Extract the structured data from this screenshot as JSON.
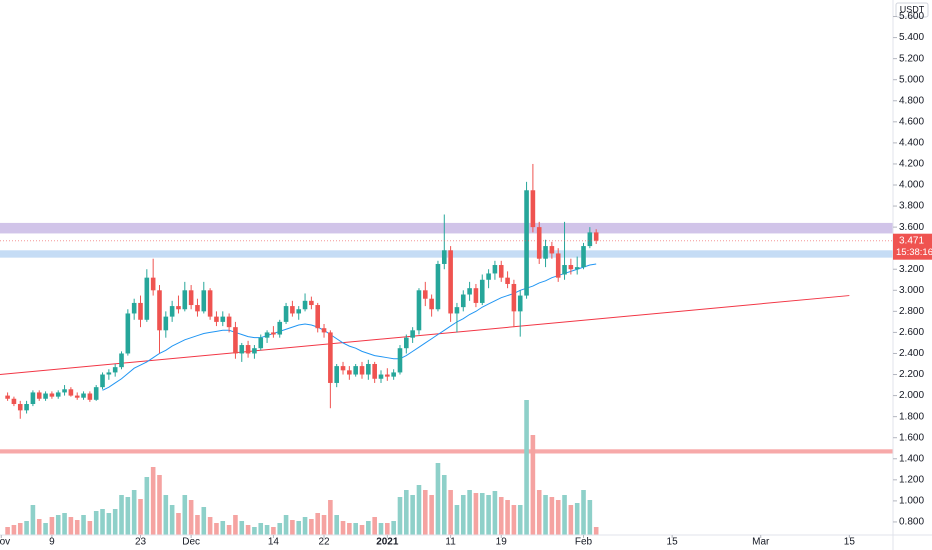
{
  "chart_data": {
    "type": "candlestick",
    "currency": "USDT",
    "countdown": "15:38:16",
    "up_color": "#26a69a",
    "down_color": "#ef5350",
    "volume_up_color": "#8ed0c9",
    "volume_down_color": "#f5a3a1",
    "open": [
      2.0,
      1.97,
      1.92,
      1.86,
      1.92,
      2.03,
      1.97,
      2.02,
      1.99,
      2.03,
      2.06,
      2.0,
      1.98,
      2.02,
      1.96,
      2.08,
      2.2,
      2.22,
      2.27,
      2.4,
      2.78,
      2.88,
      2.72,
      3.12,
      3.0,
      2.62,
      2.75,
      2.85,
      2.82,
      3.0,
      2.86,
      2.8,
      3.0,
      2.75,
      2.7,
      2.75,
      2.65,
      2.4,
      2.48,
      2.4,
      2.45,
      2.55,
      2.6,
      2.58,
      2.7,
      2.85,
      2.78,
      2.82,
      2.9,
      2.86,
      2.64,
      2.6,
      2.12,
      2.28,
      2.24,
      2.2,
      2.28,
      2.2,
      2.3,
      2.16,
      2.2,
      2.18,
      2.22,
      2.45,
      2.55,
      2.62,
      3.0,
      2.92,
      2.82,
      3.25,
      3.38,
      2.78,
      2.84,
      2.96,
      3.02,
      2.88,
      3.1,
      3.16,
      3.24,
      3.12,
      3.06,
      2.8,
      2.95,
      3.95,
      3.6,
      3.3,
      3.42,
      3.35,
      3.15,
      3.24,
      3.2,
      3.22,
      3.42,
      3.55
    ],
    "high": [
      2.03,
      1.99,
      1.95,
      1.95,
      2.05,
      2.05,
      2.04,
      2.04,
      2.05,
      2.1,
      2.08,
      2.03,
      2.04,
      2.04,
      2.1,
      2.22,
      2.25,
      2.3,
      2.42,
      2.82,
      2.92,
      2.95,
      3.2,
      3.3,
      3.05,
      2.8,
      2.9,
      2.95,
      3.08,
      3.05,
      2.92,
      3.08,
      3.02,
      2.8,
      2.8,
      2.78,
      2.7,
      2.5,
      2.52,
      2.48,
      2.58,
      2.62,
      2.66,
      2.72,
      2.88,
      2.9,
      2.85,
      2.97,
      2.94,
      2.88,
      2.68,
      2.62,
      2.3,
      2.32,
      2.28,
      2.3,
      2.32,
      2.34,
      2.32,
      2.24,
      2.26,
      2.25,
      2.48,
      2.58,
      2.65,
      3.02,
      3.08,
      2.96,
      3.28,
      3.72,
      3.42,
      2.88,
      3.0,
      3.08,
      3.06,
      3.15,
      3.2,
      3.28,
      3.28,
      3.18,
      3.1,
      3.0,
      4.03,
      4.2,
      3.65,
      3.48,
      3.46,
      3.4,
      3.65,
      3.3,
      3.32,
      3.45,
      3.6,
      3.58
    ],
    "low": [
      1.95,
      1.9,
      1.78,
      1.83,
      1.9,
      1.95,
      1.95,
      1.97,
      1.97,
      2.0,
      1.99,
      1.96,
      1.96,
      1.94,
      1.95,
      2.06,
      2.15,
      2.18,
      2.25,
      2.38,
      2.72,
      2.65,
      2.7,
      2.95,
      2.4,
      2.55,
      2.7,
      2.78,
      2.8,
      2.82,
      2.75,
      2.78,
      2.72,
      2.66,
      2.66,
      2.6,
      2.35,
      2.32,
      2.36,
      2.35,
      2.43,
      2.5,
      2.55,
      2.55,
      2.68,
      2.75,
      2.72,
      2.8,
      2.82,
      2.6,
      2.55,
      1.88,
      2.08,
      2.2,
      2.15,
      2.18,
      2.16,
      2.15,
      2.12,
      2.12,
      2.14,
      2.15,
      2.2,
      2.4,
      2.5,
      2.58,
      2.85,
      2.75,
      2.8,
      3.2,
      2.7,
      2.6,
      2.8,
      2.9,
      2.84,
      2.86,
      3.02,
      3.1,
      3.08,
      3.02,
      2.65,
      2.56,
      2.92,
      3.55,
      3.25,
      3.22,
      3.3,
      3.08,
      3.1,
      3.15,
      3.15,
      3.2,
      3.4,
      3.44
    ],
    "close": [
      1.97,
      1.92,
      1.86,
      1.92,
      2.03,
      1.97,
      2.02,
      1.99,
      2.03,
      2.06,
      2.0,
      1.98,
      2.02,
      1.96,
      2.08,
      2.2,
      2.22,
      2.27,
      2.4,
      2.78,
      2.88,
      2.72,
      3.12,
      3.0,
      2.62,
      2.75,
      2.85,
      2.82,
      3.0,
      2.86,
      2.8,
      3.0,
      2.75,
      2.7,
      2.75,
      2.65,
      2.4,
      2.48,
      2.4,
      2.45,
      2.55,
      2.6,
      2.58,
      2.7,
      2.85,
      2.78,
      2.82,
      2.9,
      2.86,
      2.64,
      2.6,
      2.12,
      2.28,
      2.24,
      2.2,
      2.28,
      2.2,
      2.3,
      2.16,
      2.2,
      2.18,
      2.22,
      2.45,
      2.55,
      2.62,
      3.0,
      2.92,
      2.82,
      3.25,
      3.38,
      2.78,
      2.84,
      2.96,
      3.02,
      2.88,
      3.1,
      3.16,
      3.24,
      3.12,
      3.06,
      2.8,
      2.95,
      3.95,
      3.6,
      3.3,
      3.42,
      3.35,
      3.12,
      3.24,
      3.2,
      3.22,
      3.42,
      3.55,
      3.471
    ],
    "volume": [
      8,
      10,
      12,
      14,
      30,
      16,
      12,
      18,
      20,
      22,
      18,
      15,
      20,
      14,
      24,
      26,
      22,
      26,
      40,
      38,
      45,
      36,
      58,
      68,
      60,
      40,
      30,
      22,
      40,
      35,
      20,
      28,
      18,
      12,
      14,
      10,
      20,
      14,
      10,
      8,
      12,
      10,
      8,
      12,
      20,
      15,
      14,
      18,
      16,
      22,
      20,
      35,
      20,
      14,
      12,
      12,
      10,
      14,
      18,
      12,
      12,
      14,
      38,
      45,
      40,
      50,
      45,
      40,
      72,
      60,
      45,
      30,
      40,
      45,
      42,
      42,
      40,
      44,
      38,
      35,
      30,
      30,
      135,
      100,
      45,
      40,
      38,
      35,
      40,
      30,
      32,
      45,
      35,
      8
    ],
    "ma": {
      "color": "#2196f3",
      "values": [
        null,
        null,
        null,
        null,
        null,
        null,
        null,
        null,
        null,
        null,
        null,
        null,
        null,
        null,
        null,
        2.05,
        2.08,
        2.12,
        2.16,
        2.21,
        2.26,
        2.29,
        2.32,
        2.36,
        2.4,
        2.43,
        2.47,
        2.5,
        2.53,
        2.55,
        2.57,
        2.59,
        2.6,
        2.61,
        2.62,
        2.62,
        2.6,
        2.58,
        2.56,
        2.55,
        2.55,
        2.57,
        2.59,
        2.61,
        2.63,
        2.65,
        2.67,
        2.68,
        2.67,
        2.65,
        2.62,
        2.58,
        2.54,
        2.5,
        2.47,
        2.45,
        2.42,
        2.4,
        2.38,
        2.37,
        2.36,
        2.35,
        2.35,
        2.38,
        2.42,
        2.46,
        2.5,
        2.54,
        2.58,
        2.62,
        2.66,
        2.7,
        2.73,
        2.77,
        2.8,
        2.84,
        2.87,
        2.9,
        2.93,
        2.95,
        2.97,
        3.0,
        3.02,
        3.04,
        3.07,
        3.09,
        3.12,
        3.14,
        3.16,
        3.18,
        3.2,
        3.22,
        3.24,
        3.25
      ]
    },
    "trendline": {
      "color": "#f23645",
      "x": [
        -1.2,
        133
      ],
      "values": [
        2.2,
        2.95
      ]
    },
    "zones": [
      {
        "from": 3.54,
        "to": 3.64,
        "color": "#d1c4e9"
      },
      {
        "from": 3.31,
        "to": 3.38,
        "color": "#c5dcf5"
      },
      {
        "from": 1.45,
        "to": 1.49,
        "color": "#f7a9a9"
      }
    ],
    "xlim": [
      -1.2,
      139.9
    ],
    "ylim": [
      0.676,
      5.757
    ],
    "y2lim": [
      0,
      535
    ],
    "xticks": [
      {
        "value": -1,
        "label": "Nov"
      },
      {
        "value": 7,
        "label": "9"
      },
      {
        "value": 21,
        "label": "23"
      },
      {
        "value": 29,
        "label": "Dec"
      },
      {
        "value": 42,
        "label": "14"
      },
      {
        "value": 50,
        "label": "22"
      },
      {
        "value": 60,
        "label": "2021"
      },
      {
        "value": 70,
        "label": "11"
      },
      {
        "value": 78,
        "label": "19"
      },
      {
        "value": 91,
        "label": "Feb"
      },
      {
        "value": 105,
        "label": "15"
      },
      {
        "value": 119,
        "label": "Mar"
      },
      {
        "value": 133,
        "label": "15"
      }
    ],
    "yticks": [
      {
        "value": 0.8,
        "label": "0.800"
      },
      {
        "value": 1.0,
        "label": "1.000"
      },
      {
        "value": 1.2,
        "label": "1.200"
      },
      {
        "value": 1.4,
        "label": "1.400"
      },
      {
        "value": 1.6,
        "label": "1.600"
      },
      {
        "value": 1.8,
        "label": "1.800"
      },
      {
        "value": 2.0,
        "label": "2.000"
      },
      {
        "value": 2.2,
        "label": "2.200"
      },
      {
        "value": 2.4,
        "label": "2.400"
      },
      {
        "value": 2.6,
        "label": "2.600"
      },
      {
        "value": 2.8,
        "label": "2.800"
      },
      {
        "value": 3.0,
        "label": "3.000"
      },
      {
        "value": 3.2,
        "label": "3.200"
      },
      {
        "value": 3.4,
        "label": "3.400"
      },
      {
        "value": 3.6,
        "label": "3.600"
      },
      {
        "value": 3.8,
        "label": "3.800"
      },
      {
        "value": 4.0,
        "label": "4.000"
      },
      {
        "value": 4.2,
        "label": "4.200"
      },
      {
        "value": 4.4,
        "label": "4.400"
      },
      {
        "value": 4.6,
        "label": "4.600"
      },
      {
        "value": 4.8,
        "label": "4.800"
      },
      {
        "value": 5.0,
        "label": "5.000"
      },
      {
        "value": 5.2,
        "label": "5.200"
      },
      {
        "value": 5.4,
        "label": "5.400"
      },
      {
        "value": 5.6,
        "label": "5.600"
      }
    ],
    "grid": false
  }
}
